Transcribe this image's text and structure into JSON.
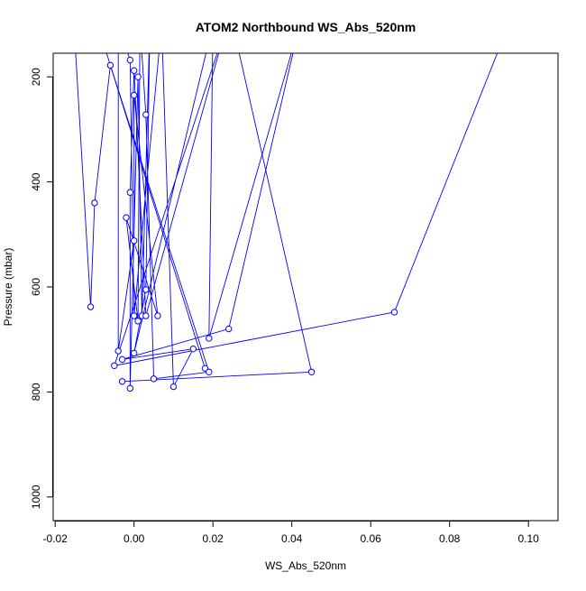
{
  "chart_data": {
    "type": "scatter",
    "title": "ATOM2 Northbound WS_Abs_520nm",
    "xlabel": "WS_Abs_520nm",
    "ylabel": "Pressure (mbar)",
    "xlim": [
      -0.0205,
      0.1075
    ],
    "ylim": [
      1045,
      155
    ],
    "y_reversed": true,
    "grid": false,
    "x_ticks": [
      -0.02,
      0.0,
      0.02,
      0.04,
      0.06,
      0.08,
      0.1
    ],
    "x_tick_labels": [
      "-0.02",
      "0.00",
      "0.02",
      "0.04",
      "0.06",
      "0.08",
      "0.10"
    ],
    "y_ticks": [
      200,
      400,
      600,
      800,
      1000
    ],
    "y_tick_labels": [
      "200",
      "400",
      "600",
      "800",
      "1000"
    ],
    "series_color": "#0000ff",
    "off_chart_ticks": [
      -0.015,
      -0.008,
      -0.004,
      -0.001,
      0.001,
      0.0015,
      0.004,
      0.007,
      0.02,
      0.0235,
      0.025,
      0.042,
      0.095
    ],
    "points": [
      {
        "x": -0.006,
        "y": 178
      },
      {
        "x": -0.001,
        "y": 168
      },
      {
        "x": 0.0,
        "y": 188
      },
      {
        "x": 0.001,
        "y": 200
      },
      {
        "x": 0.0,
        "y": 235
      },
      {
        "x": 0.003,
        "y": 272
      },
      {
        "x": -0.001,
        "y": 420
      },
      {
        "x": -0.01,
        "y": 440
      },
      {
        "x": -0.002,
        "y": 468
      },
      {
        "x": 0.0,
        "y": 512
      },
      {
        "x": 0.003,
        "y": 605
      },
      {
        "x": -0.011,
        "y": 638
      },
      {
        "x": 0.066,
        "y": 648
      },
      {
        "x": 0.0,
        "y": 655
      },
      {
        "x": 0.002,
        "y": 655
      },
      {
        "x": 0.003,
        "y": 655
      },
      {
        "x": 0.006,
        "y": 655
      },
      {
        "x": 0.001,
        "y": 665
      },
      {
        "x": 0.024,
        "y": 680
      },
      {
        "x": 0.019,
        "y": 698
      },
      {
        "x": 0.015,
        "y": 718
      },
      {
        "x": -0.004,
        "y": 722
      },
      {
        "x": 0.0,
        "y": 726
      },
      {
        "x": -0.003,
        "y": 738
      },
      {
        "x": -0.005,
        "y": 750
      },
      {
        "x": 0.018,
        "y": 755
      },
      {
        "x": 0.019,
        "y": 762
      },
      {
        "x": 0.045,
        "y": 762
      },
      {
        "x": 0.005,
        "y": 775
      },
      {
        "x": -0.003,
        "y": 780
      },
      {
        "x": 0.01,
        "y": 790
      },
      {
        "x": -0.001,
        "y": 793
      }
    ],
    "path": [
      {
        "x": -0.015,
        "y": 130
      },
      {
        "x": -0.011,
        "y": 638
      },
      {
        "x": -0.01,
        "y": 440
      },
      {
        "x": -0.006,
        "y": 178
      },
      {
        "x": 0.019,
        "y": 762
      },
      {
        "x": 0.005,
        "y": 775
      },
      {
        "x": 0.003,
        "y": 272
      },
      {
        "x": 0.0015,
        "y": 100
      },
      {
        "x": 0.001,
        "y": 665
      },
      {
        "x": -0.002,
        "y": 468
      },
      {
        "x": 0.006,
        "y": 655
      },
      {
        "x": 0.0,
        "y": 235
      },
      {
        "x": 0.0,
        "y": 512
      },
      {
        "x": -0.004,
        "y": 722
      },
      {
        "x": -0.004,
        "y": 100
      },
      {
        "x": -0.001,
        "y": 168
      },
      {
        "x": 0.0,
        "y": 655
      },
      {
        "x": 0.007,
        "y": 100
      },
      {
        "x": 0.01,
        "y": 790
      },
      {
        "x": 0.015,
        "y": 718
      },
      {
        "x": -0.003,
        "y": 738
      },
      {
        "x": 0.024,
        "y": 680
      },
      {
        "x": 0.042,
        "y": 100
      },
      {
        "x": 0.019,
        "y": 698
      },
      {
        "x": 0.02,
        "y": 100
      },
      {
        "x": 0.0,
        "y": 726
      },
      {
        "x": 0.003,
        "y": 605
      },
      {
        "x": 0.004,
        "y": 100
      },
      {
        "x": 0.002,
        "y": 655
      },
      {
        "x": 0.001,
        "y": 200
      },
      {
        "x": -0.001,
        "y": 793
      },
      {
        "x": -0.001,
        "y": 420
      },
      {
        "x": 0.0,
        "y": 188
      },
      {
        "x": 0.003,
        "y": 655
      },
      {
        "x": 0.0235,
        "y": 100
      },
      {
        "x": -0.005,
        "y": 750
      },
      {
        "x": 0.066,
        "y": 648
      },
      {
        "x": 0.095,
        "y": 100
      }
    ],
    "path_b": [
      {
        "x": -0.008,
        "y": 130
      },
      {
        "x": 0.018,
        "y": 755
      }
    ],
    "path_c": [
      {
        "x": 0.025,
        "y": 100
      },
      {
        "x": 0.045,
        "y": 762
      },
      {
        "x": -0.003,
        "y": 780
      }
    ]
  }
}
